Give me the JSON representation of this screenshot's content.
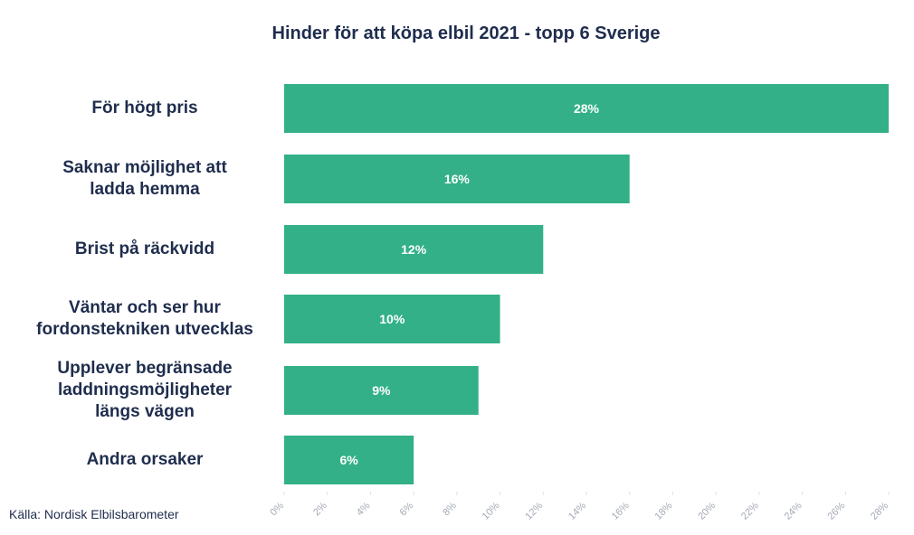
{
  "chart_data": {
    "type": "bar",
    "orientation": "horizontal",
    "title": "Hinder för att köpa elbil 2021 - topp 6 Sverige",
    "categories": [
      "För högt pris",
      "Saknar möjlighet att\nladda hemma",
      "Brist på räckvidd",
      "Väntar och ser hur\nfordonstekniken utvecklas",
      "Upplever begränsade\nladdningsmöjligheter\nlängs vägen",
      "Andra orsaker"
    ],
    "values": [
      28,
      16,
      12,
      10,
      9,
      6
    ],
    "data_labels": [
      "28%",
      "16%",
      "12%",
      "10%",
      "9%",
      "6%"
    ],
    "xlim": [
      0,
      28
    ],
    "ticks": [
      "0%",
      "2%",
      "4%",
      "6%",
      "8%",
      "10%",
      "12%",
      "14%",
      "16%",
      "18%",
      "20%",
      "22%",
      "24%",
      "26%",
      "28%"
    ],
    "bar_color": "#33b087",
    "label_color": "#1f2d4d",
    "tick_color": "#a3aab5",
    "grid": false
  },
  "source": "Källa: Nordisk Elbilsbarometer"
}
